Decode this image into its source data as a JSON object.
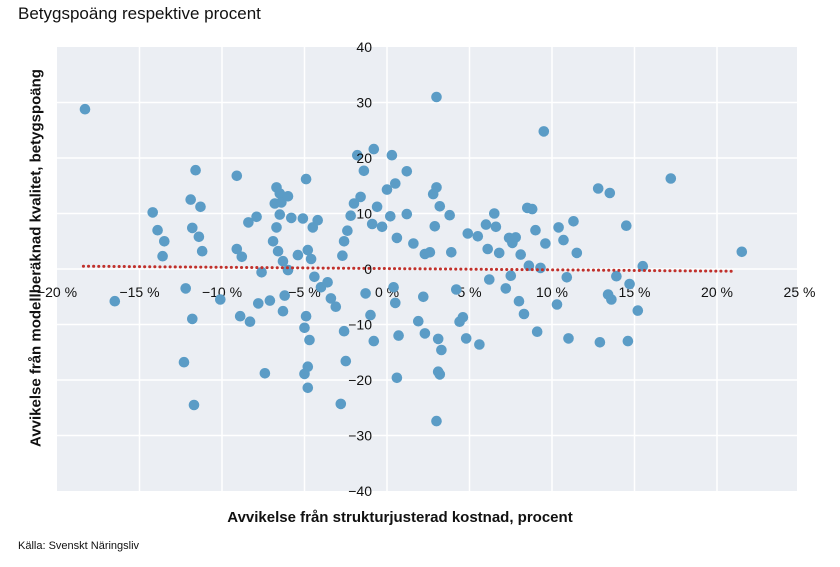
{
  "header": {
    "title": "Betygspoäng respektive procent"
  },
  "footer": {
    "source": "Källa: Svenskt Näringsliv"
  },
  "chart_data": {
    "type": "scatter",
    "title": "Betygspoäng respektive procent",
    "xlabel": "Avvikelse från strukturjusterad kostnad, procent",
    "ylabel": "Avvikelse från modellberäknad kvalitet, betygspoäng",
    "xlim": [
      -20,
      25
    ],
    "ylim": [
      -40,
      40
    ],
    "x_ticks": [
      -20,
      -15,
      -10,
      -5,
      0,
      5,
      10,
      15,
      20,
      25
    ],
    "x_tick_labels": [
      "−20 %",
      "−15 %",
      "−10 %",
      "−5 %",
      "0 %",
      "5 %",
      "10 %",
      "15 %",
      "20 %",
      "25 %"
    ],
    "y_ticks": [
      40,
      30,
      20,
      10,
      0,
      -10,
      -20,
      -30,
      -40
    ],
    "y_tick_labels": [
      "40",
      "30",
      "20",
      "10",
      "0",
      "−10",
      "−20",
      "−30",
      "−40"
    ],
    "grid": true,
    "colors": {
      "points": "#5b9cc6",
      "trend": "#c0302b",
      "plot_background": "#ebeef3",
      "grid": "#ffffff"
    },
    "trend_line": {
      "style": "dotted",
      "x": [
        -18.4,
        21.0
      ],
      "y": [
        0.5,
        -0.4
      ]
    },
    "points": [
      [
        -18.3,
        28.8
      ],
      [
        -16.5,
        -5.8
      ],
      [
        -14.2,
        10.2
      ],
      [
        -13.9,
        7.0
      ],
      [
        -13.5,
        5.0
      ],
      [
        -13.6,
        2.3
      ],
      [
        -12.2,
        -3.5
      ],
      [
        -12.3,
        -16.8
      ],
      [
        -11.9,
        12.5
      ],
      [
        -11.6,
        17.8
      ],
      [
        -11.3,
        11.2
      ],
      [
        -11.4,
        5.8
      ],
      [
        -11.2,
        3.2
      ],
      [
        -11.8,
        7.4
      ],
      [
        -11.8,
        -9.0
      ],
      [
        -11.7,
        -24.5
      ],
      [
        -10.1,
        -5.5
      ],
      [
        -9.1,
        16.8
      ],
      [
        -9.1,
        3.6
      ],
      [
        -8.8,
        2.2
      ],
      [
        -8.9,
        -8.5
      ],
      [
        -8.4,
        8.4
      ],
      [
        -8.3,
        -9.5
      ],
      [
        -7.9,
        9.4
      ],
      [
        -7.8,
        -6.2
      ],
      [
        -7.6,
        -0.6
      ],
      [
        -7.1,
        -5.7
      ],
      [
        -7.4,
        -18.8
      ],
      [
        -6.8,
        11.8
      ],
      [
        -6.7,
        14.7
      ],
      [
        -6.5,
        13.6
      ],
      [
        -6.4,
        12.0
      ],
      [
        -6.5,
        9.8
      ],
      [
        -6.7,
        7.5
      ],
      [
        -6.9,
        5.0
      ],
      [
        -6.6,
        3.2
      ],
      [
        -6.3,
        1.4
      ],
      [
        -6.0,
        -0.2
      ],
      [
        -6.2,
        -4.8
      ],
      [
        -6.3,
        -7.6
      ],
      [
        -6.0,
        13.1
      ],
      [
        -5.8,
        9.2
      ],
      [
        -5.4,
        2.5
      ],
      [
        -5.1,
        9.1
      ],
      [
        -4.9,
        16.2
      ],
      [
        -4.8,
        3.4
      ],
      [
        -4.6,
        1.8
      ],
      [
        -4.4,
        -1.4
      ],
      [
        -4.9,
        -8.5
      ],
      [
        -5.0,
        -10.6
      ],
      [
        -4.7,
        -12.8
      ],
      [
        -4.8,
        -17.6
      ],
      [
        -5.0,
        -18.9
      ],
      [
        -4.8,
        -21.4
      ],
      [
        -4.5,
        7.5
      ],
      [
        -4.2,
        8.8
      ],
      [
        -4.0,
        -3.3
      ],
      [
        -3.6,
        -2.4
      ],
      [
        -3.4,
        -5.3
      ],
      [
        -3.1,
        -6.8
      ],
      [
        -2.7,
        2.4
      ],
      [
        -2.6,
        5.0
      ],
      [
        -2.4,
        6.9
      ],
      [
        -2.2,
        9.6
      ],
      [
        -2.0,
        11.8
      ],
      [
        -2.6,
        -11.2
      ],
      [
        -2.5,
        -16.6
      ],
      [
        -2.8,
        -24.3
      ],
      [
        -1.8,
        20.5
      ],
      [
        -1.6,
        13.0
      ],
      [
        -1.4,
        17.7
      ],
      [
        -0.9,
        8.1
      ],
      [
        -1.3,
        -4.4
      ],
      [
        -1.0,
        -8.3
      ],
      [
        -0.8,
        21.6
      ],
      [
        -0.6,
        11.2
      ],
      [
        -0.3,
        7.6
      ],
      [
        -0.8,
        -13.0
      ],
      [
        0.3,
        20.5
      ],
      [
        0.0,
        14.3
      ],
      [
        0.5,
        15.4
      ],
      [
        0.2,
        9.5
      ],
      [
        0.6,
        5.6
      ],
      [
        0.4,
        -3.3
      ],
      [
        0.5,
        -6.1
      ],
      [
        0.7,
        -12.0
      ],
      [
        0.6,
        -19.6
      ],
      [
        1.2,
        17.6
      ],
      [
        1.2,
        9.9
      ],
      [
        1.6,
        4.6
      ],
      [
        2.2,
        -5.0
      ],
      [
        1.9,
        -9.4
      ],
      [
        2.3,
        -11.6
      ],
      [
        2.8,
        13.5
      ],
      [
        2.6,
        3.0
      ],
      [
        2.3,
        2.7
      ],
      [
        3.0,
        14.7
      ],
      [
        3.2,
        11.3
      ],
      [
        2.9,
        7.7
      ],
      [
        3.0,
        31.0
      ],
      [
        3.1,
        -12.6
      ],
      [
        3.1,
        -18.5
      ],
      [
        3.2,
        -19.0
      ],
      [
        3.0,
        -27.4
      ],
      [
        3.3,
        -14.6
      ],
      [
        3.8,
        9.7
      ],
      [
        3.9,
        3.0
      ],
      [
        4.2,
        -3.7
      ],
      [
        4.4,
        -9.5
      ],
      [
        4.6,
        -8.7
      ],
      [
        4.9,
        6.4
      ],
      [
        4.8,
        -12.5
      ],
      [
        5.5,
        5.9
      ],
      [
        5.6,
        -13.6
      ],
      [
        6.0,
        8.0
      ],
      [
        6.1,
        3.6
      ],
      [
        6.2,
        -1.9
      ],
      [
        6.5,
        10.0
      ],
      [
        6.6,
        7.6
      ],
      [
        6.8,
        2.9
      ],
      [
        7.2,
        -3.5
      ],
      [
        7.4,
        5.6
      ],
      [
        7.6,
        4.7
      ],
      [
        7.8,
        5.7
      ],
      [
        7.5,
        -1.2
      ],
      [
        8.0,
        -5.8
      ],
      [
        8.1,
        2.6
      ],
      [
        8.5,
        11.0
      ],
      [
        8.8,
        10.8
      ],
      [
        8.3,
        -8.1
      ],
      [
        8.6,
        0.6
      ],
      [
        9.0,
        7.0
      ],
      [
        9.1,
        -11.3
      ],
      [
        9.3,
        0.2
      ],
      [
        9.5,
        24.8
      ],
      [
        9.6,
        4.6
      ],
      [
        10.3,
        -6.4
      ],
      [
        10.4,
        7.5
      ],
      [
        10.7,
        5.2
      ],
      [
        10.9,
        -1.5
      ],
      [
        11.0,
        -12.5
      ],
      [
        11.3,
        8.6
      ],
      [
        11.5,
        2.9
      ],
      [
        12.8,
        14.5
      ],
      [
        12.9,
        -13.2
      ],
      [
        13.5,
        13.7
      ],
      [
        13.4,
        -4.6
      ],
      [
        13.6,
        -5.5
      ],
      [
        13.9,
        -1.3
      ],
      [
        14.5,
        7.8
      ],
      [
        14.6,
        -13.0
      ],
      [
        14.7,
        -2.7
      ],
      [
        15.2,
        -7.5
      ],
      [
        15.5,
        0.5
      ],
      [
        17.2,
        16.3
      ],
      [
        21.5,
        3.1
      ]
    ]
  }
}
